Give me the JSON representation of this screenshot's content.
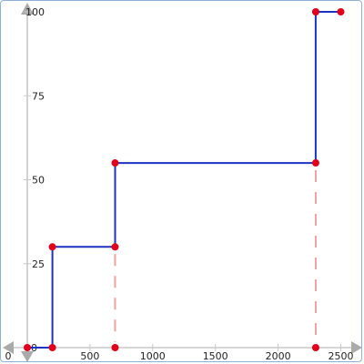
{
  "chart_data": {
    "type": "line",
    "subtype": "step",
    "title": "",
    "xlabel": "",
    "ylabel": "",
    "xlim": [
      -180,
      2600
    ],
    "ylim": [
      -2,
      102
    ],
    "x_ticks": [
      0,
      500,
      1000,
      1500,
      2000,
      2500
    ],
    "y_ticks": [
      0,
      25,
      50,
      75,
      100
    ],
    "grid": false,
    "legend": "none",
    "series": [
      {
        "color": "#1a33c4",
        "points": [
          {
            "x": 0,
            "y": 0
          },
          {
            "x": 200,
            "y": 0
          },
          {
            "x": 200,
            "y": 30
          },
          {
            "x": 700,
            "y": 30
          },
          {
            "x": 700,
            "y": 55
          },
          {
            "x": 2300,
            "y": 55
          },
          {
            "x": 2300,
            "y": 100
          },
          {
            "x": 2500,
            "y": 100
          }
        ]
      }
    ],
    "marker_points": [
      {
        "x": 0,
        "y": 0
      },
      {
        "x": 200,
        "y": 0
      },
      {
        "x": 200,
        "y": 30
      },
      {
        "x": 700,
        "y": 30
      },
      {
        "x": 700,
        "y": 55
      },
      {
        "x": 2300,
        "y": 55
      },
      {
        "x": 2300,
        "y": 100
      },
      {
        "x": 2500,
        "y": 100
      },
      {
        "x": 700,
        "y": 0
      },
      {
        "x": 2300,
        "y": 0
      }
    ],
    "dashed_drops": [
      {
        "x": 700,
        "y_from": 30,
        "y_to": 0
      },
      {
        "x": 2300,
        "y_from": 55,
        "y_to": 0
      }
    ],
    "colors": {
      "line": "#1a33c4",
      "marker": "#e3001b",
      "dashed": "#f0a0a0",
      "axis": "#c8c8c8",
      "axis_arrow": "#aaaaaa"
    }
  }
}
